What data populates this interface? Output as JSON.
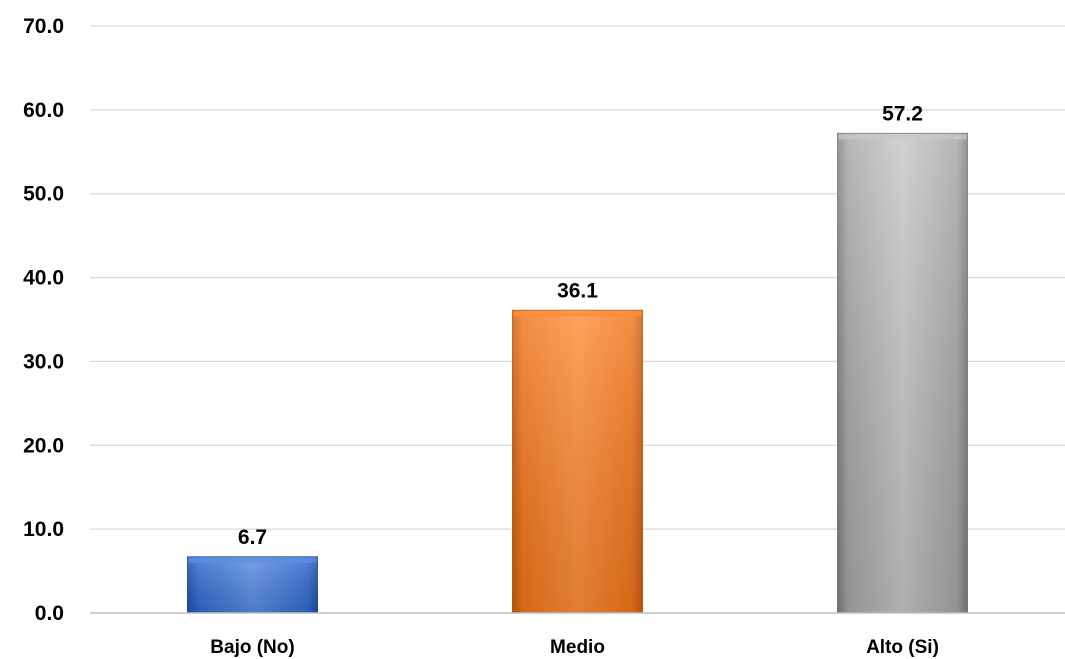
{
  "chart_data": {
    "type": "bar",
    "categories": [
      "Bajo (No)",
      "Medio",
      "Alto (Si)"
    ],
    "values": [
      6.7,
      36.1,
      57.2
    ],
    "value_labels": [
      "6.7",
      "36.1",
      "57.2"
    ],
    "ylim": [
      0,
      70
    ],
    "yticks": [
      0,
      10,
      20,
      30,
      40,
      50,
      60,
      70
    ],
    "ytick_labels": [
      "0.0",
      "10.0",
      "20.0",
      "30.0",
      "40.0",
      "50.0",
      "60.0",
      "70.0"
    ],
    "grid": true,
    "legend": "none",
    "colors": {
      "bars": [
        {
          "light": "#5b8fe0",
          "base": "#2f6ad0",
          "dark": "#1f4fa6"
        },
        {
          "light": "#ff8f3a",
          "base": "#f2761c",
          "dark": "#c85c0e"
        },
        {
          "light": "#c8c8c8",
          "base": "#a6a6a6",
          "dark": "#7e7e7e"
        }
      ],
      "gridline": "#d9d9d9",
      "axis": "#bfbfbf",
      "text": "#000000"
    }
  }
}
